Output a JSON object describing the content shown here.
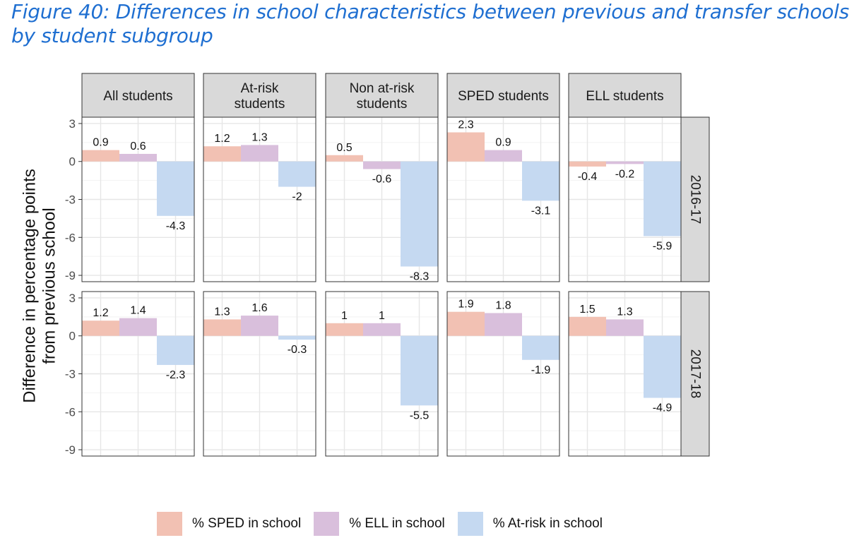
{
  "figure_title": "Figure 40: Differences in school characteristics between previous and transfer schools by student subgroup",
  "chart_data": {
    "type": "bar",
    "title": "",
    "ylabel": "Difference in percentage points from previous school",
    "ylabel_lines": [
      "Difference in percentage points",
      "from previous school"
    ],
    "xlabel": "",
    "ylim": [
      -9.5,
      3.5
    ],
    "yticks": [
      3,
      0,
      -3,
      -6,
      -9
    ],
    "yticks_labels": [
      "3",
      "0",
      "-3",
      "-6",
      "-9"
    ],
    "grid": true,
    "legend_position": "bottom",
    "facet_columns": [
      {
        "label_lines": [
          "All students"
        ]
      },
      {
        "label_lines": [
          "At-risk",
          "students"
        ]
      },
      {
        "label_lines": [
          "Non at-risk",
          "students"
        ]
      },
      {
        "label_lines": [
          "SPED students"
        ]
      },
      {
        "label_lines": [
          "ELL students"
        ]
      }
    ],
    "facet_rows": [
      "2016-17",
      "2017-18"
    ],
    "series": [
      {
        "name": "% SPED in school",
        "color": "#f2c1b3"
      },
      {
        "name": "% ELL in school",
        "color": "#d9bfdc"
      },
      {
        "name": "% At-risk in school",
        "color": "#c5d9f1"
      }
    ],
    "values": [
      [
        [
          0.9,
          0.6,
          -4.3
        ],
        [
          1.2,
          1.3,
          -2
        ],
        [
          0.5,
          -0.6,
          -8.3
        ],
        [
          2.3,
          0.9,
          -3.1
        ],
        [
          -0.4,
          -0.2,
          -5.9
        ]
      ],
      [
        [
          1.2,
          1.4,
          -2.3
        ],
        [
          1.3,
          1.6,
          -0.3
        ],
        [
          1,
          1,
          -5.5
        ],
        [
          1.9,
          1.8,
          -1.9
        ],
        [
          1.5,
          1.3,
          -4.9
        ]
      ]
    ],
    "labels": [
      [
        [
          "0.9",
          "0.6",
          "-4.3"
        ],
        [
          "1.2",
          "1.3",
          "-2"
        ],
        [
          "0.5",
          "-0.6",
          "-8.3"
        ],
        [
          "2.3",
          "0.9",
          "-3.1"
        ],
        [
          "-0.4",
          "-0.2",
          "-5.9"
        ]
      ],
      [
        [
          "1.2",
          "1.4",
          "-2.3"
        ],
        [
          "1.3",
          "1.6",
          "-0.3"
        ],
        [
          "1",
          "1",
          "-5.5"
        ],
        [
          "1.9",
          "1.8",
          "-1.9"
        ],
        [
          "1.5",
          "1.3",
          "-4.9"
        ]
      ]
    ]
  }
}
